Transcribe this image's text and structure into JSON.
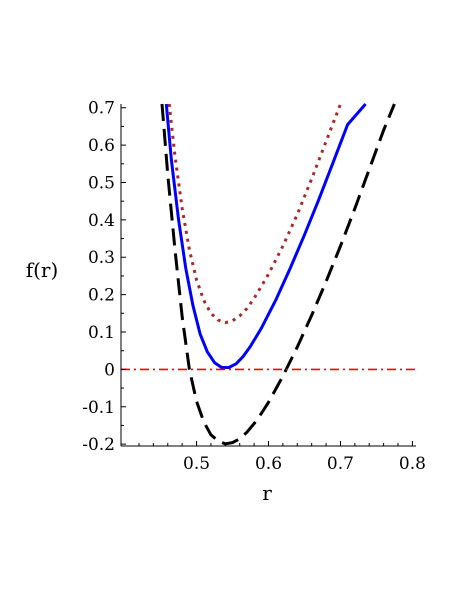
{
  "chart_data": {
    "type": "line",
    "xlabel": "r",
    "ylabel": "f(r)",
    "xlim": [
      0.395,
      0.805
    ],
    "ylim": [
      -0.205,
      0.71
    ],
    "x_ticks": [
      0.5,
      0.6,
      0.7,
      0.8
    ],
    "y_ticks": [
      -0.2,
      -0.1,
      0,
      0.1,
      0.2,
      0.3,
      0.4,
      0.5,
      0.6,
      0.7
    ],
    "x_tick_labels": [
      "0.5",
      "0.6",
      "0.7",
      "0.8"
    ],
    "y_tick_labels": [
      "-0.2",
      "-0.1",
      "0",
      "0.1",
      "0.2",
      "0.3",
      "0.4",
      "0.5",
      "0.6",
      "0.7"
    ],
    "grid": false,
    "series": [
      {
        "style": "dashed",
        "color": "#000000",
        "x": [
          0.452,
          0.46,
          0.47,
          0.48,
          0.49,
          0.5,
          0.51,
          0.52,
          0.53,
          0.54,
          0.55,
          0.56,
          0.57,
          0.58,
          0.59,
          0.6,
          0.62,
          0.64,
          0.66,
          0.68,
          0.7,
          0.72,
          0.74,
          0.76,
          0.775
        ],
        "y": [
          0.71,
          0.52,
          0.32,
          0.14,
          0.0,
          -0.085,
          -0.14,
          -0.175,
          -0.192,
          -0.199,
          -0.196,
          -0.186,
          -0.168,
          -0.145,
          -0.118,
          -0.088,
          -0.018,
          0.06,
          0.145,
          0.235,
          0.33,
          0.43,
          0.535,
          0.64,
          0.71
        ]
      },
      {
        "style": "solid",
        "color": "#0000ff",
        "x": [
          0.458,
          0.465,
          0.475,
          0.485,
          0.495,
          0.505,
          0.515,
          0.525,
          0.535,
          0.545,
          0.555,
          0.565,
          0.575,
          0.59,
          0.61,
          0.63,
          0.65,
          0.67,
          0.69,
          0.71,
          0.735
        ],
        "y": [
          0.71,
          0.56,
          0.4,
          0.27,
          0.17,
          0.095,
          0.047,
          0.018,
          0.005,
          0.005,
          0.015,
          0.035,
          0.062,
          0.11,
          0.185,
          0.27,
          0.36,
          0.455,
          0.555,
          0.655,
          0.71
        ]
      },
      {
        "style": "dotted",
        "color": "#a52a2a",
        "x": [
          0.462,
          0.47,
          0.48,
          0.49,
          0.5,
          0.51,
          0.52,
          0.53,
          0.54,
          0.55,
          0.56,
          0.57,
          0.58,
          0.6,
          0.62,
          0.64,
          0.66,
          0.68,
          0.7
        ],
        "y": [
          0.71,
          0.57,
          0.43,
          0.32,
          0.24,
          0.185,
          0.15,
          0.132,
          0.125,
          0.13,
          0.143,
          0.163,
          0.19,
          0.255,
          0.33,
          0.415,
          0.51,
          0.61,
          0.71
        ]
      },
      {
        "style": "dashdot",
        "color": "#ff0000",
        "x": [
          0.395,
          0.805
        ],
        "y": [
          0,
          0
        ]
      }
    ]
  }
}
